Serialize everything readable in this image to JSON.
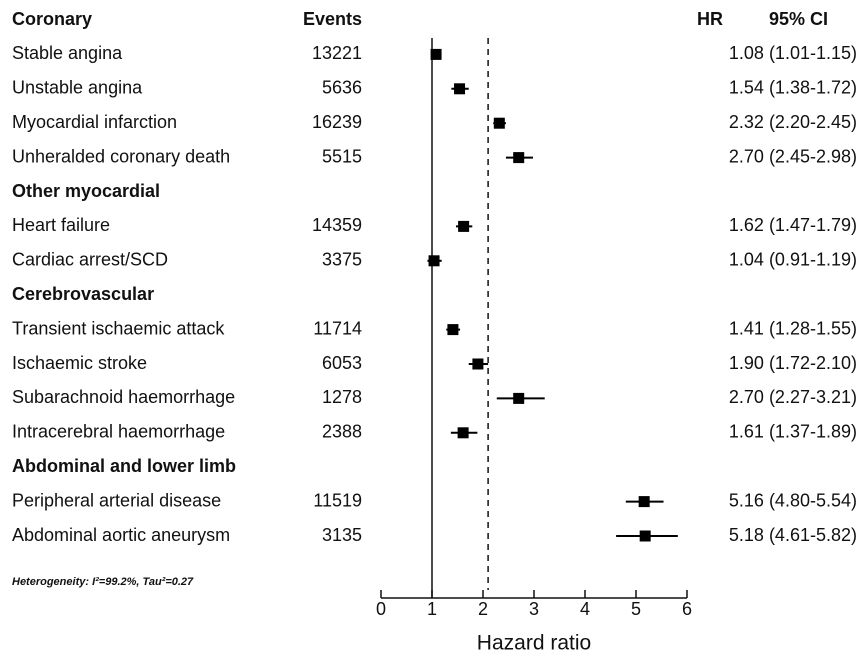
{
  "chart_data": {
    "type": "forest",
    "columns": {
      "events": "Events",
      "hr": "HR",
      "ci": "95% CI"
    },
    "groups": [
      {
        "name": "Coronary",
        "rows": [
          {
            "label": "Stable angina",
            "events": 13221,
            "hr": 1.08,
            "ci_low": 1.01,
            "ci_high": 1.15,
            "hr_label": "1.08 (1.01-1.15)"
          },
          {
            "label": "Unstable angina",
            "events": 5636,
            "hr": 1.54,
            "ci_low": 1.38,
            "ci_high": 1.72,
            "hr_label": "1.54 (1.38-1.72)"
          },
          {
            "label": "Myocardial infarction",
            "events": 16239,
            "hr": 2.32,
            "ci_low": 2.2,
            "ci_high": 2.45,
            "hr_label": "2.32 (2.20-2.45)"
          },
          {
            "label": "Unheralded coronary death",
            "events": 5515,
            "hr": 2.7,
            "ci_low": 2.45,
            "ci_high": 2.98,
            "hr_label": "2.70 (2.45-2.98)"
          }
        ]
      },
      {
        "name": "Other myocardial",
        "rows": [
          {
            "label": "Heart failure",
            "events": 14359,
            "hr": 1.62,
            "ci_low": 1.47,
            "ci_high": 1.79,
            "hr_label": "1.62 (1.47-1.79)"
          },
          {
            "label": "Cardiac arrest/SCD",
            "events": 3375,
            "hr": 1.04,
            "ci_low": 0.91,
            "ci_high": 1.19,
            "hr_label": "1.04 (0.91-1.19)"
          }
        ]
      },
      {
        "name": "Cerebrovascular",
        "rows": [
          {
            "label": "Transient ischaemic attack",
            "events": 11714,
            "hr": 1.41,
            "ci_low": 1.28,
            "ci_high": 1.55,
            "hr_label": "1.41 (1.28-1.55)"
          },
          {
            "label": "Ischaemic stroke",
            "events": 6053,
            "hr": 1.9,
            "ci_low": 1.72,
            "ci_high": 2.1,
            "hr_label": "1.90 (1.72-2.10)"
          },
          {
            "label": "Subarachnoid haemorrhage",
            "events": 1278,
            "hr": 2.7,
            "ci_low": 2.27,
            "ci_high": 3.21,
            "hr_label": "2.70 (2.27-3.21)"
          },
          {
            "label": "Intracerebral haemorrhage",
            "events": 2388,
            "hr": 1.61,
            "ci_low": 1.37,
            "ci_high": 1.89,
            "hr_label": "1.61 (1.37-1.89)"
          }
        ]
      },
      {
        "name": "Abdominal and lower limb",
        "rows": [
          {
            "label": "Peripheral arterial disease",
            "events": 11519,
            "hr": 5.16,
            "ci_low": 4.8,
            "ci_high": 5.54,
            "hr_label": "5.16 (4.80-5.54)"
          },
          {
            "label": "Abdominal aortic aneurysm",
            "events": 3135,
            "hr": 5.18,
            "ci_low": 4.61,
            "ci_high": 5.82,
            "hr_label": "5.18 (4.61-5.82)"
          }
        ]
      }
    ],
    "null_line": 1,
    "dashed_line": 2.1,
    "annotation": "Heterogeneity: I²=99.2%, Tau²=0.27",
    "x_label": "Hazard ratio",
    "xlim": [
      0,
      6
    ],
    "xticks": [
      0,
      1,
      2,
      3,
      4,
      5,
      6
    ],
    "color": "#000000"
  }
}
